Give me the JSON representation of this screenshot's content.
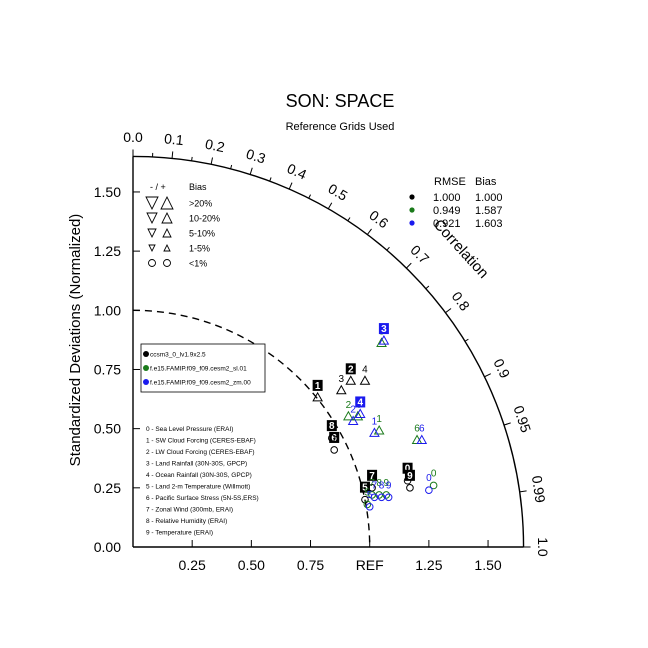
{
  "chart_data": {
    "type": "scatter",
    "subtype": "taylor-diagram",
    "title": "SON: SPACE",
    "subtitle": "Reference Grids Used",
    "ylabel": "Standardized Deviations (Normalized)",
    "angle_label": "Correlation",
    "ref_label": "REF",
    "std_ticks": [
      "0.25",
      "0.50",
      "0.75",
      "1.00",
      "1.25",
      "1.50"
    ],
    "x_tick_values": [
      0.25,
      0.5,
      0.75,
      1.25,
      1.5
    ],
    "y_tick_values": [
      0.0,
      0.25,
      0.5,
      0.75,
      1.0,
      1.25,
      1.5
    ],
    "y_tick_labels": [
      "0.00",
      "0.25",
      "0.50",
      "0.75",
      "1.00",
      "1.25",
      "1.50"
    ],
    "corr_ticks": [
      "0.0",
      "0.1",
      "0.2",
      "0.3",
      "0.4",
      "0.5",
      "0.6",
      "0.7",
      "0.8",
      "0.9",
      "0.95",
      "0.99",
      "1.0"
    ],
    "corr_values": [
      0.0,
      0.1,
      0.2,
      0.3,
      0.4,
      0.5,
      0.6,
      0.7,
      0.8,
      0.9,
      0.95,
      0.99,
      1.0
    ],
    "xlim": [
      0,
      1.65
    ],
    "ylim": [
      0,
      1.65
    ],
    "ref_std": 1.0,
    "bias_legend": {
      "header_sign": "- / +",
      "header_bias": "Bias",
      "rows": [
        ">20%",
        "10-20%",
        "5-10%",
        "1-5%",
        "<1%"
      ]
    },
    "stats_table": {
      "headers": [
        "RMSE",
        "Bias"
      ],
      "rows": [
        {
          "color": "#000000",
          "rmse": "1.000",
          "bias": "1.000"
        },
        {
          "color": "#1a7a1a",
          "rmse": "0.949",
          "bias": "1.587"
        },
        {
          "color": "#1a1aee",
          "rmse": "0.921",
          "bias": "1.603"
        }
      ]
    },
    "case_legend": [
      {
        "name": "ccsm3_0_lv1.9x2.5",
        "color": "#000000"
      },
      {
        "name": "f.e15.FAMIP.f09_f09.cesm2_sl.01",
        "color": "#1a7a1a"
      },
      {
        "name": "f.e15.FAMIP.f09_f09.cesm2_zm.00",
        "color": "#1a1aee"
      }
    ],
    "variables": [
      "0 - Sea Level Pressure (ERAI)",
      "1 - SW Cloud Forcing (CERES-EBAF)",
      "2 - LW Cloud Forcing (CERES-EBAF)",
      "3 - Land Rainfall (30N-30S, GPCP)",
      "4 - Ocean Rainfall (30N-30S, GPCP)",
      "5 - Land 2-m Temperature (Willmott)",
      "6 - Pacific Surface Stress (5N-5S,ERS)",
      "7 - Zonal Wind (300mb, ERAI)",
      "8 - Relative Humidity (ERAI)",
      "9 - Temperature (ERAI)"
    ],
    "series": [
      {
        "color": "#000000",
        "points": [
          {
            "id": "0",
            "x": 1.16,
            "y": 0.28,
            "marker": "o",
            "boxed": true
          },
          {
            "id": "1",
            "x": 0.78,
            "y": 0.63,
            "marker": "^",
            "boxed": true
          },
          {
            "id": "2",
            "x": 0.92,
            "y": 0.7,
            "marker": "^",
            "boxed": true
          },
          {
            "id": "3",
            "x": 0.88,
            "y": 0.66,
            "marker": "^",
            "boxed": false
          },
          {
            "id": "4",
            "x": 0.98,
            "y": 0.7,
            "marker": "^",
            "boxed": false
          },
          {
            "id": "5",
            "x": 0.98,
            "y": 0.2,
            "marker": "o",
            "boxed": true
          },
          {
            "id": "6",
            "x": 0.85,
            "y": 0.41,
            "marker": "o",
            "boxed": true
          },
          {
            "id": "7",
            "x": 1.01,
            "y": 0.25,
            "marker": "o",
            "boxed": true
          },
          {
            "id": "8",
            "x": 0.84,
            "y": 0.46,
            "marker": "o",
            "boxed": true
          },
          {
            "id": "9",
            "x": 1.17,
            "y": 0.25,
            "marker": "o",
            "boxed": true
          }
        ]
      },
      {
        "color": "#1a7a1a",
        "points": [
          {
            "id": "0",
            "x": 1.27,
            "y": 0.26,
            "marker": "o",
            "boxed": false
          },
          {
            "id": "1",
            "x": 1.04,
            "y": 0.49,
            "marker": "^",
            "boxed": false
          },
          {
            "id": "2",
            "x": 0.91,
            "y": 0.55,
            "marker": "^",
            "boxed": false
          },
          {
            "id": "3",
            "x": 1.05,
            "y": 0.86,
            "marker": "^",
            "boxed": false
          },
          {
            "id": "4",
            "x": 0.95,
            "y": 0.55,
            "marker": "^",
            "boxed": false
          },
          {
            "id": "5",
            "x": 0.99,
            "y": 0.18,
            "marker": "o",
            "boxed": false
          },
          {
            "id": "6",
            "x": 1.2,
            "y": 0.45,
            "marker": "^",
            "boxed": false
          },
          {
            "id": "7",
            "x": 1.01,
            "y": 0.22,
            "marker": "o",
            "boxed": false
          },
          {
            "id": "8",
            "x": 1.04,
            "y": 0.22,
            "marker": "o",
            "boxed": false
          },
          {
            "id": "9",
            "x": 1.07,
            "y": 0.22,
            "marker": "o",
            "boxed": false
          }
        ]
      },
      {
        "color": "#1a1aee",
        "points": [
          {
            "id": "0",
            "x": 1.25,
            "y": 0.24,
            "marker": "o",
            "boxed": false
          },
          {
            "id": "1",
            "x": 1.02,
            "y": 0.48,
            "marker": "^",
            "boxed": false
          },
          {
            "id": "2",
            "x": 0.93,
            "y": 0.53,
            "marker": "^",
            "boxed": false
          },
          {
            "id": "3",
            "x": 1.06,
            "y": 0.87,
            "marker": "^",
            "boxed": true
          },
          {
            "id": "4",
            "x": 0.96,
            "y": 0.56,
            "marker": "^",
            "boxed": true
          },
          {
            "id": "5",
            "x": 1.0,
            "y": 0.17,
            "marker": "o",
            "boxed": false
          },
          {
            "id": "6",
            "x": 1.22,
            "y": 0.45,
            "marker": "^",
            "boxed": false
          },
          {
            "id": "7",
            "x": 1.02,
            "y": 0.21,
            "marker": "o",
            "boxed": false
          },
          {
            "id": "8",
            "x": 1.05,
            "y": 0.21,
            "marker": "o",
            "boxed": false
          },
          {
            "id": "9",
            "x": 1.08,
            "y": 0.21,
            "marker": "o",
            "boxed": false
          }
        ]
      }
    ]
  }
}
